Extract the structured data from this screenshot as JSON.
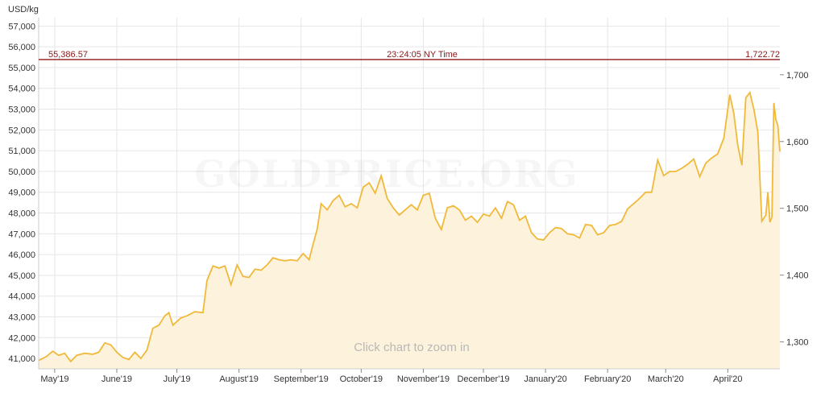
{
  "watermark": "GOLDPRICE.ORG",
  "zoom_hint": "Click chart to zoom in",
  "colors": {
    "line": "#f0b93a",
    "fill": "#fdf3dc",
    "crosshair": "#8b1a1a",
    "grid": "#e6e6e6"
  },
  "crosshair": {
    "left_value": "55,386.57",
    "time": "23:24:05 NY Time",
    "right_value": "1,722.72",
    "level": 55386.57
  },
  "chart_data": {
    "type": "area",
    "y_unit_label": "USD/kg",
    "ylim": [
      40500,
      57400
    ],
    "y_ticks": [
      41000,
      42000,
      43000,
      44000,
      45000,
      46000,
      47000,
      48000,
      49000,
      50000,
      51000,
      52000,
      53000,
      54000,
      55000,
      56000,
      57000
    ],
    "y_tick_labels": [
      "41,000",
      "42,000",
      "43,000",
      "44,000",
      "45,000",
      "46,000",
      "47,000",
      "48,000",
      "49,000",
      "50,000",
      "51,000",
      "52,000",
      "53,000",
      "54,000",
      "55,000",
      "56,000",
      "57,000"
    ],
    "y2_ticks": [
      1300,
      1400,
      1500,
      1600,
      1700
    ],
    "y2_tick_labels": [
      "1,300",
      "1,400",
      "1,500",
      "1,600",
      "1,700"
    ],
    "y2_conversion_usd_per_kg_per_unit": 32.15,
    "x_tick_labels": [
      "May'19",
      "June'19",
      "July'19",
      "August'19",
      "September'19",
      "October'19",
      "November'19",
      "December'19",
      "January'20",
      "February'20",
      "March'20",
      "April'20"
    ],
    "x_tick_dates": [
      "2019-05-01",
      "2019-06-01",
      "2019-07-01",
      "2019-08-01",
      "2019-09-01",
      "2019-10-01",
      "2019-11-01",
      "2019-12-01",
      "2020-01-01",
      "2020-02-01",
      "2020-03-01",
      "2020-04-01"
    ],
    "xlim": [
      "2019-04-23",
      "2020-04-27"
    ],
    "grid": true,
    "series": [
      {
        "points": [
          [
            "2019-04-23",
            40900
          ],
          [
            "2019-04-27",
            41100
          ],
          [
            "2019-04-30",
            41350
          ],
          [
            "2019-05-03",
            41150
          ],
          [
            "2019-05-06",
            41250
          ],
          [
            "2019-05-09",
            40850
          ],
          [
            "2019-05-12",
            41150
          ],
          [
            "2019-05-16",
            41250
          ],
          [
            "2019-05-20",
            41200
          ],
          [
            "2019-05-23",
            41300
          ],
          [
            "2019-05-26",
            41750
          ],
          [
            "2019-05-29",
            41650
          ],
          [
            "2019-06-01",
            41300
          ],
          [
            "2019-06-04",
            41050
          ],
          [
            "2019-06-07",
            40950
          ],
          [
            "2019-06-10",
            41300
          ],
          [
            "2019-06-13",
            41000
          ],
          [
            "2019-06-16",
            41400
          ],
          [
            "2019-06-19",
            42450
          ],
          [
            "2019-06-22",
            42600
          ],
          [
            "2019-06-25",
            43050
          ],
          [
            "2019-06-27",
            43200
          ],
          [
            "2019-06-29",
            42600
          ],
          [
            "2019-07-03",
            42950
          ],
          [
            "2019-07-06",
            43050
          ],
          [
            "2019-07-10",
            43250
          ],
          [
            "2019-07-14",
            43200
          ],
          [
            "2019-07-16",
            44750
          ],
          [
            "2019-07-19",
            45450
          ],
          [
            "2019-07-22",
            45350
          ],
          [
            "2019-07-25",
            45450
          ],
          [
            "2019-07-28",
            44550
          ],
          [
            "2019-07-31",
            45500
          ],
          [
            "2019-08-03",
            44950
          ],
          [
            "2019-08-06",
            44900
          ],
          [
            "2019-08-09",
            45300
          ],
          [
            "2019-08-12",
            45250
          ],
          [
            "2019-08-15",
            45500
          ],
          [
            "2019-08-18",
            45850
          ],
          [
            "2019-08-21",
            45750
          ],
          [
            "2019-08-24",
            45700
          ],
          [
            "2019-08-27",
            45750
          ],
          [
            "2019-08-30",
            45700
          ],
          [
            "2019-09-02",
            46050
          ],
          [
            "2019-09-05",
            45750
          ],
          [
            "2019-09-07",
            46500
          ],
          [
            "2019-09-09",
            47200
          ],
          [
            "2019-09-11",
            48450
          ],
          [
            "2019-09-14",
            48150
          ],
          [
            "2019-09-17",
            48600
          ],
          [
            "2019-09-20",
            48850
          ],
          [
            "2019-09-23",
            48300
          ],
          [
            "2019-09-26",
            48450
          ],
          [
            "2019-09-29",
            48250
          ],
          [
            "2019-10-02",
            49250
          ],
          [
            "2019-10-05",
            49450
          ],
          [
            "2019-10-08",
            48950
          ],
          [
            "2019-10-11",
            49800
          ],
          [
            "2019-10-14",
            48700
          ],
          [
            "2019-10-17",
            48250
          ],
          [
            "2019-10-20",
            47900
          ],
          [
            "2019-10-23",
            48150
          ],
          [
            "2019-10-26",
            48400
          ],
          [
            "2019-10-29",
            48150
          ],
          [
            "2019-11-01",
            48850
          ],
          [
            "2019-11-04",
            48950
          ],
          [
            "2019-11-07",
            47750
          ],
          [
            "2019-11-10",
            47200
          ],
          [
            "2019-11-13",
            48250
          ],
          [
            "2019-11-16",
            48350
          ],
          [
            "2019-11-19",
            48150
          ],
          [
            "2019-11-22",
            47650
          ],
          [
            "2019-11-25",
            47850
          ],
          [
            "2019-11-28",
            47550
          ],
          [
            "2019-12-01",
            47950
          ],
          [
            "2019-12-04",
            47850
          ],
          [
            "2019-12-07",
            48250
          ],
          [
            "2019-12-10",
            47750
          ],
          [
            "2019-12-13",
            48550
          ],
          [
            "2019-12-16",
            48400
          ],
          [
            "2019-12-19",
            47650
          ],
          [
            "2019-12-22",
            47850
          ],
          [
            "2019-12-25",
            47050
          ],
          [
            "2019-12-28",
            46750
          ],
          [
            "2019-12-31",
            46700
          ],
          [
            "2020-01-03",
            47050
          ],
          [
            "2020-01-06",
            47300
          ],
          [
            "2020-01-09",
            47250
          ],
          [
            "2020-01-12",
            47000
          ],
          [
            "2020-01-15",
            46950
          ],
          [
            "2020-01-18",
            46800
          ],
          [
            "2020-01-21",
            47450
          ],
          [
            "2020-01-24",
            47400
          ],
          [
            "2020-01-27",
            46950
          ],
          [
            "2020-01-30",
            47050
          ],
          [
            "2020-02-02",
            47400
          ],
          [
            "2020-02-05",
            47450
          ],
          [
            "2020-02-08",
            47600
          ],
          [
            "2020-02-11",
            48200
          ],
          [
            "2020-02-14",
            48450
          ],
          [
            "2020-02-17",
            48700
          ],
          [
            "2020-02-20",
            49000
          ],
          [
            "2020-02-23",
            49000
          ],
          [
            "2020-02-26",
            50550
          ],
          [
            "2020-02-29",
            49800
          ],
          [
            "2020-03-03",
            50000
          ],
          [
            "2020-03-06",
            50000
          ],
          [
            "2020-03-09",
            50150
          ],
          [
            "2020-03-12",
            50350
          ],
          [
            "2020-03-15",
            50600
          ],
          [
            "2020-03-18",
            49750
          ],
          [
            "2020-03-21",
            50400
          ],
          [
            "2020-03-24",
            50650
          ],
          [
            "2020-03-27",
            50850
          ],
          [
            "2020-03-30",
            51600
          ],
          [
            "2020-04-02",
            53700
          ],
          [
            "2020-04-04",
            52800
          ],
          [
            "2020-04-06",
            51250
          ],
          [
            "2020-04-08",
            50300
          ],
          [
            "2020-04-10",
            53550
          ],
          [
            "2020-04-12",
            53800
          ],
          [
            "2020-04-14",
            53000
          ],
          [
            "2020-04-16",
            51900
          ],
          [
            "2020-04-18",
            47600
          ],
          [
            "2020-04-20",
            47900
          ],
          [
            "2020-04-21",
            49000
          ],
          [
            "2020-04-22",
            47550
          ],
          [
            "2020-04-23",
            47800
          ],
          [
            "2020-04-24",
            53300
          ],
          [
            "2020-04-25",
            52500
          ],
          [
            "2020-04-26",
            52200
          ],
          [
            "2020-04-27",
            50950
          ]
        ]
      }
    ]
  }
}
